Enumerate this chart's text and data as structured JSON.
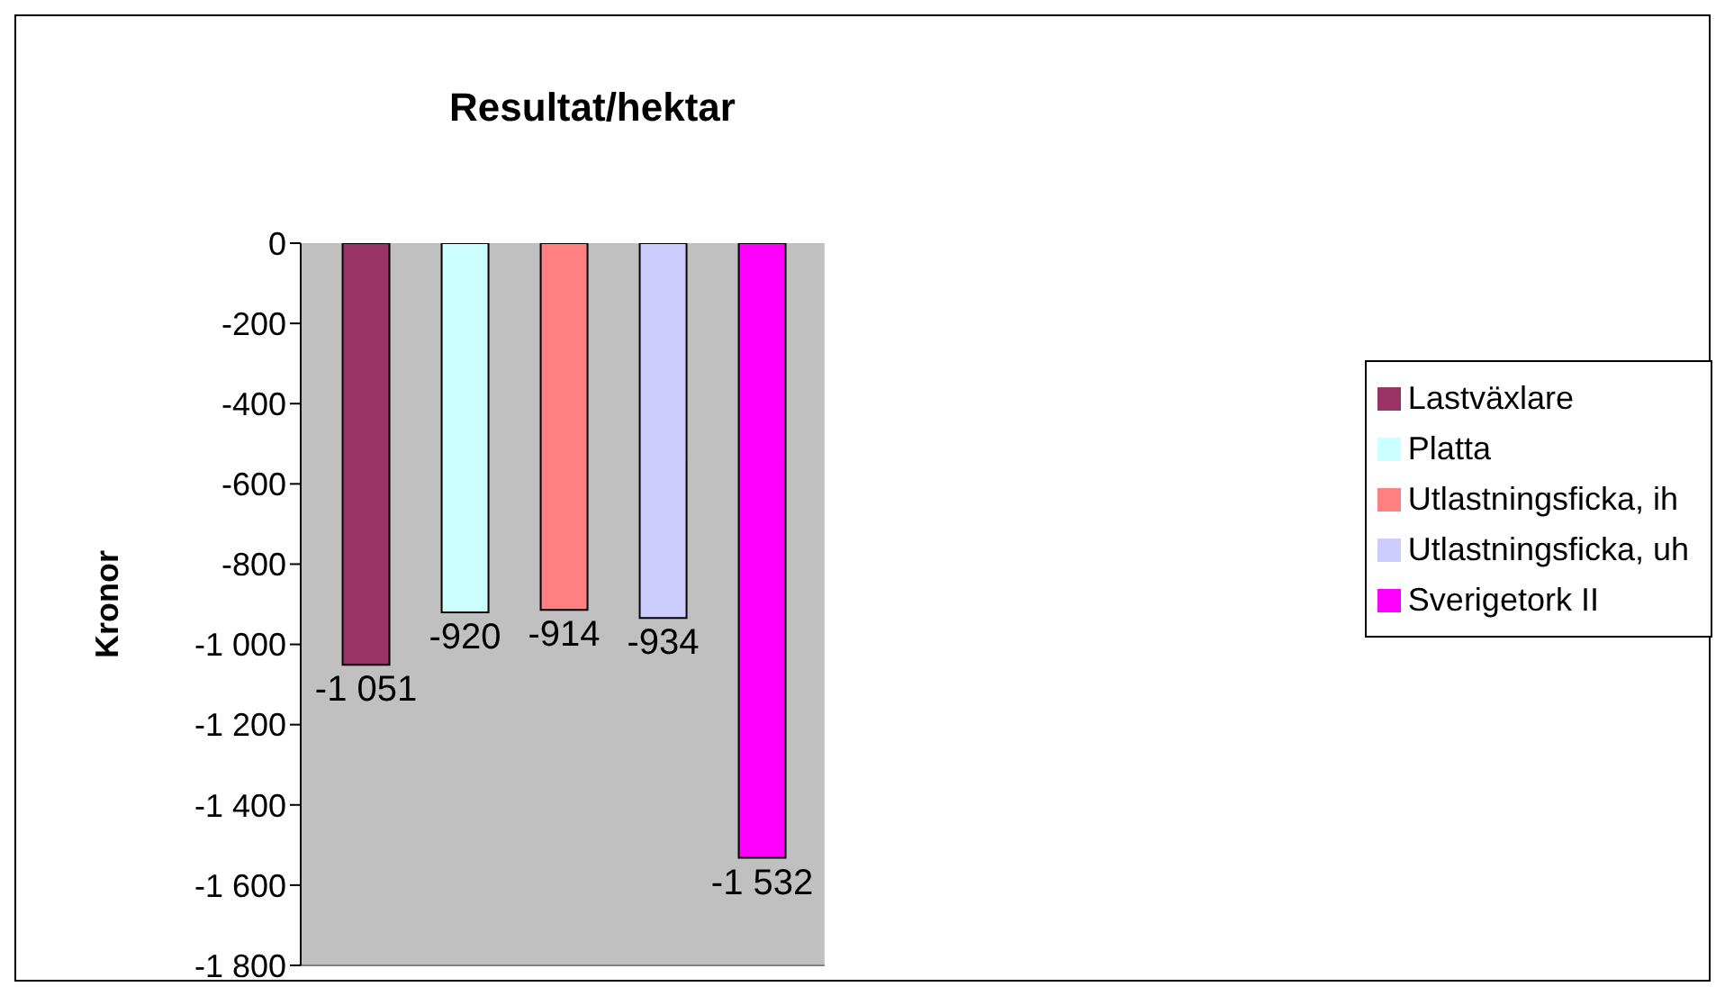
{
  "chart_data": {
    "type": "bar",
    "title": "Resultat/hektar",
    "ylabel": "Kronor",
    "categories": [
      null
    ],
    "series": [
      {
        "name": "Lastväxlare",
        "color": "#993366",
        "values": [
          -1051
        ],
        "value_labels": [
          "-1 051"
        ]
      },
      {
        "name": "Platta",
        "color": "#ccffff",
        "values": [
          -920
        ],
        "value_labels": [
          "-920"
        ]
      },
      {
        "name": "Utlastningsficka, ih",
        "color": "#ff8080",
        "values": [
          -914
        ],
        "value_labels": [
          "-914"
        ]
      },
      {
        "name": "Utlastningsficka, uh",
        "color": "#ccccff",
        "values": [
          -934
        ],
        "value_labels": [
          "-934"
        ]
      },
      {
        "name": "Sverigetork II",
        "color": "#ff00ff",
        "values": [
          -1532
        ],
        "value_labels": [
          "-1 532"
        ]
      }
    ],
    "ylim": [
      -1800,
      0
    ],
    "yticks": [
      0,
      -200,
      -400,
      -600,
      -800,
      {
        "value": -1000,
        "label": "-1 000"
      },
      {
        "value": -1200,
        "label": "-1 200"
      },
      {
        "value": -1400,
        "label": "-1 400"
      },
      {
        "value": -1600,
        "label": "-1 600"
      },
      {
        "value": -1800,
        "label": "-1 800"
      }
    ],
    "grid": false,
    "legend": "right"
  }
}
